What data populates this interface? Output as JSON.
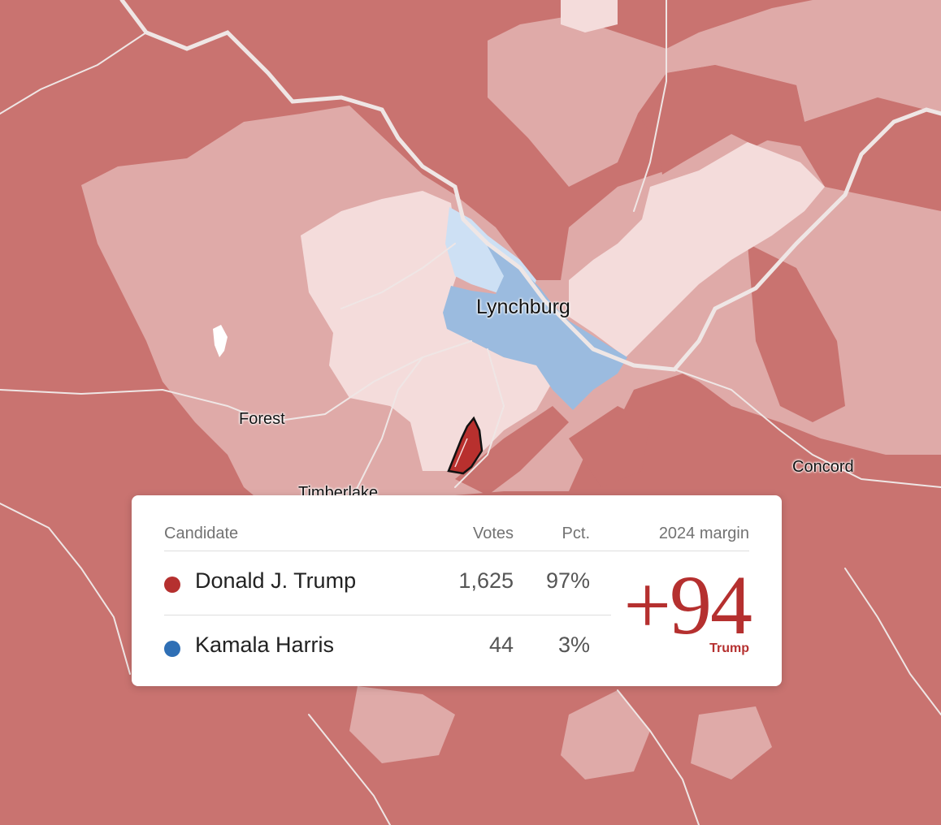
{
  "map": {
    "places": {
      "lynchburg": "Lynchburg",
      "forest": "Forest",
      "concord": "Concord",
      "timberlake": "Timberlake"
    },
    "colors": {
      "trump_strong": "#c97370",
      "trump_medium": "#dfaaa8",
      "trump_light": "#f4dcdb",
      "harris_medium": "#9bbbdf",
      "harris_light": "#cde0f4",
      "selected_precinct": "#b8302e",
      "roads": "#f2eded"
    }
  },
  "tooltip": {
    "headers": {
      "candidate": "Candidate",
      "votes": "Votes",
      "pct": "Pct.",
      "margin": "2024 margin"
    },
    "rows": [
      {
        "name": "Donald J. Trump",
        "votes": "1,625",
        "pct": "97%",
        "color": "#b5302f"
      },
      {
        "name": "Kamala Harris",
        "votes": "44",
        "pct": "3%",
        "color": "#2f6fb5"
      }
    ],
    "margin": {
      "value": "+94",
      "winner": "Trump"
    }
  }
}
